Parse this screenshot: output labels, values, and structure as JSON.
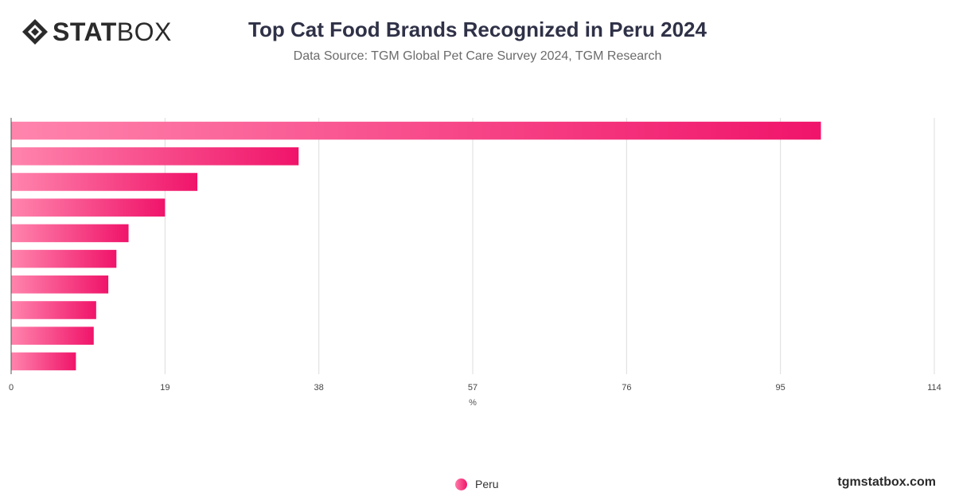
{
  "logo": {
    "part1": "STAT",
    "part2": "BOX"
  },
  "header": {
    "title": "Top Cat Food Brands Recognized in Peru 2024",
    "subtitle": "Data Source: TGM Global Pet Care Survey 2024, TGM Research"
  },
  "footer": {
    "site": "tgmstatbox.com"
  },
  "colors": {
    "bar_start": "#ff85ad",
    "bar_end": "#f0146a",
    "grid": "#dcdcdc",
    "axis_text": "#444444"
  },
  "chart_data": {
    "type": "bar",
    "orientation": "horizontal",
    "categories": [
      "",
      "",
      "",
      "",
      "",
      "",
      "",
      "",
      "",
      ""
    ],
    "series": [
      {
        "name": "Peru",
        "values": [
          100,
          35.5,
          23,
          19,
          14.5,
          13,
          12,
          10.5,
          10.2,
          8
        ]
      }
    ],
    "xlabel": "%",
    "xlim": [
      0,
      114
    ],
    "xticks": [
      "0",
      "19",
      "38",
      "57",
      "76",
      "95",
      "114"
    ],
    "grid": true,
    "legend": "bottom-center"
  }
}
